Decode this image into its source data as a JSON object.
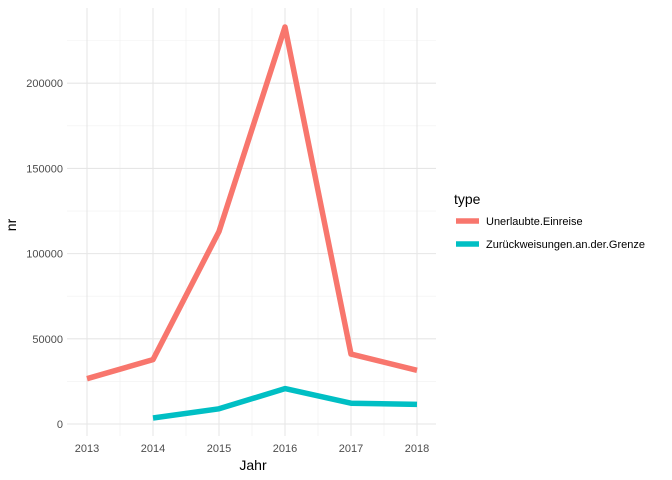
{
  "chart_data": {
    "type": "line",
    "x": [
      2013,
      2014,
      2015,
      2016,
      2017,
      2018
    ],
    "x_ticks": [
      2013,
      2014,
      2015,
      2016,
      2017,
      2018
    ],
    "y_ticks": [
      0,
      50000,
      100000,
      150000,
      200000
    ],
    "xlabel": "Jahr",
    "ylabel": "nr",
    "xlim": [
      2013,
      2018
    ],
    "ylim": [
      0,
      233000
    ],
    "grid": true,
    "legend": {
      "title": "type",
      "placement": "right"
    },
    "series": [
      {
        "name": "Unerlaubte.Einreise",
        "color": "#f8766d",
        "x": [
          2013,
          2014,
          2015,
          2016,
          2017,
          2018
        ],
        "values": [
          26600,
          37800,
          113000,
          233000,
          41000,
          31500
        ]
      },
      {
        "name": "Zurückweisungen.an.der.Grenze",
        "color": "#00bfc4",
        "x": [
          2014,
          2015,
          2016,
          2017,
          2018
        ],
        "values": [
          3500,
          8900,
          20800,
          12200,
          11500
        ]
      }
    ]
  }
}
